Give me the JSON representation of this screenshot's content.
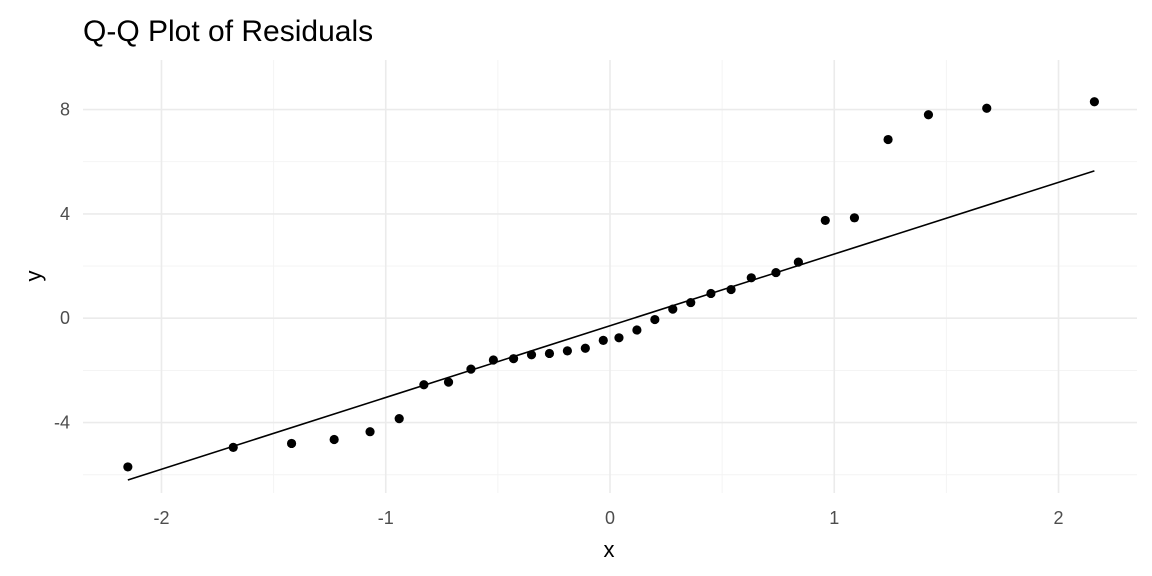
{
  "chart_data": {
    "type": "scatter",
    "title": "Q-Q Plot of Residuals",
    "xlabel": "x",
    "ylabel": "y",
    "xlim": [
      -2.35,
      2.35
    ],
    "ylim": [
      -6.7,
      9.9
    ],
    "x_ticks": [
      -2,
      -1,
      0,
      1,
      2
    ],
    "x_tick_labels": [
      "-2",
      "-1",
      "0",
      "1",
      "2"
    ],
    "y_ticks": [
      -4,
      0,
      4,
      8
    ],
    "y_tick_labels": [
      "-4",
      "0",
      "4",
      "8"
    ],
    "grid": true,
    "legend": "none",
    "point_color": "#000000",
    "line_color": "#000000",
    "series": [
      {
        "values": [
          {
            "x": -2.15,
            "y": -5.7
          },
          {
            "x": -1.68,
            "y": -4.95
          },
          {
            "x": -1.42,
            "y": -4.8
          },
          {
            "x": -1.23,
            "y": -4.65
          },
          {
            "x": -1.07,
            "y": -4.35
          },
          {
            "x": -0.94,
            "y": -3.85
          },
          {
            "x": -0.83,
            "y": -2.55
          },
          {
            "x": -0.72,
            "y": -2.45
          },
          {
            "x": -0.62,
            "y": -1.95
          },
          {
            "x": -0.52,
            "y": -1.6
          },
          {
            "x": -0.43,
            "y": -1.55
          },
          {
            "x": -0.35,
            "y": -1.4
          },
          {
            "x": -0.27,
            "y": -1.35
          },
          {
            "x": -0.19,
            "y": -1.25
          },
          {
            "x": -0.11,
            "y": -1.15
          },
          {
            "x": -0.03,
            "y": -0.85
          },
          {
            "x": 0.04,
            "y": -0.75
          },
          {
            "x": 0.12,
            "y": -0.45
          },
          {
            "x": 0.2,
            "y": -0.05
          },
          {
            "x": 0.28,
            "y": 0.35
          },
          {
            "x": 0.36,
            "y": 0.6
          },
          {
            "x": 0.45,
            "y": 0.95
          },
          {
            "x": 0.54,
            "y": 1.1
          },
          {
            "x": 0.63,
            "y": 1.55
          },
          {
            "x": 0.74,
            "y": 1.75
          },
          {
            "x": 0.84,
            "y": 2.15
          },
          {
            "x": 0.96,
            "y": 3.75
          },
          {
            "x": 1.09,
            "y": 3.85
          },
          {
            "x": 1.24,
            "y": 6.85
          },
          {
            "x": 1.42,
            "y": 7.8
          },
          {
            "x": 1.68,
            "y": 8.05
          },
          {
            "x": 2.16,
            "y": 8.3
          }
        ]
      }
    ],
    "reference_line": {
      "x": [
        -2.15,
        2.16
      ],
      "y": [
        -6.2,
        5.65
      ]
    }
  }
}
